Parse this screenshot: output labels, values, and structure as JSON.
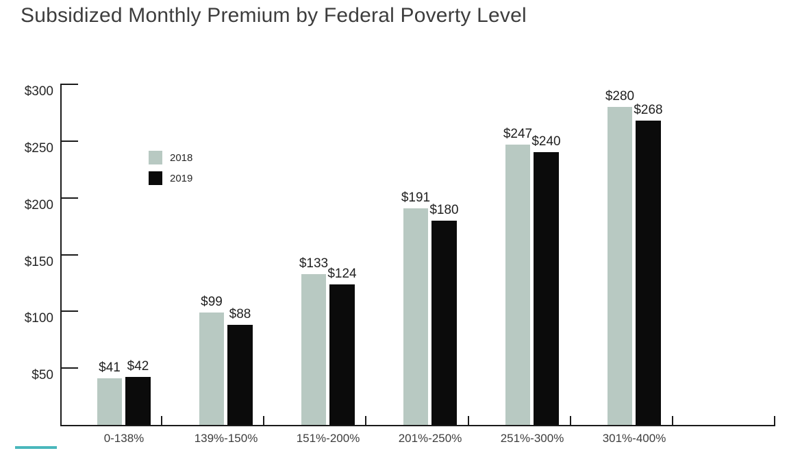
{
  "title": "Subsidized Monthly Premium by Federal Poverty Level",
  "accent": {
    "underline_color": "#4ab7bc"
  },
  "colors": {
    "axis": "#1a1a1a",
    "title_text": "#3d3d3d",
    "value_label_text": "#1f1f1f"
  },
  "chart_data": {
    "type": "bar",
    "title": "Subsidized Monthly Premium by Federal Poverty Level",
    "categories": [
      "0-138%",
      "139%-150%",
      "151%-200%",
      "201%-250%",
      "251%-300%",
      "301%-400%"
    ],
    "series": [
      {
        "name": "2018",
        "color": "#b8c9c2",
        "values": [
          41,
          99,
          133,
          191,
          247,
          280
        ]
      },
      {
        "name": "2019",
        "color": "#0b0b0b",
        "values": [
          42,
          88,
          124,
          180,
          240,
          268
        ]
      }
    ],
    "data_labels": {
      "2018": [
        "$41",
        "$99",
        "$133",
        "$191",
        "$247",
        "$280"
      ],
      "2019": [
        "$42",
        "$88",
        "$124",
        "$180",
        "$240",
        "$268"
      ]
    },
    "value_prefix": "$",
    "y_ticks": [
      50,
      100,
      150,
      200,
      250,
      300
    ],
    "y_tick_labels": [
      "$50",
      "$100",
      "$150",
      "$200",
      "$250",
      "$300"
    ],
    "ylim": [
      0,
      300
    ],
    "xlabel": "",
    "ylabel": "",
    "grid": false,
    "legend_position": "inside-upper-left",
    "legend_entries": [
      "2018",
      "2019"
    ]
  }
}
